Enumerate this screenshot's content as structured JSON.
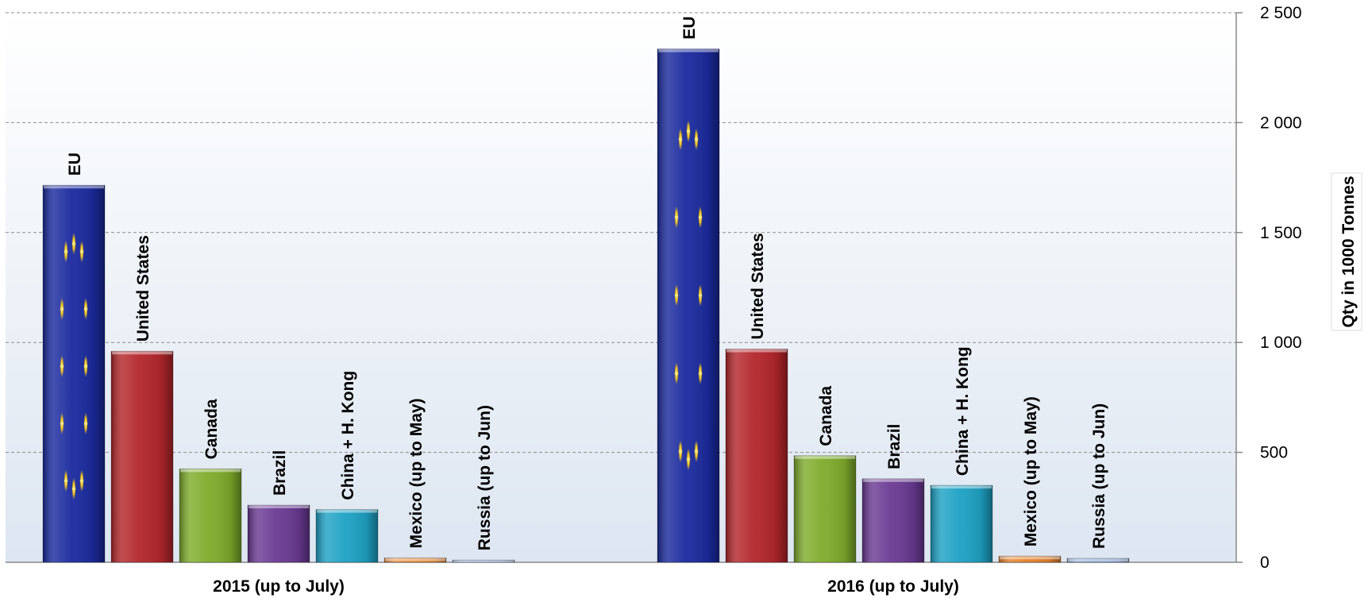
{
  "chart_data": {
    "type": "bar",
    "title": "",
    "xlabel": "",
    "ylabel": "Qty in 1000 Tonnes",
    "ylim": [
      0,
      2500
    ],
    "yticks": [
      0,
      500,
      1000,
      1500,
      2000,
      2500
    ],
    "ytick_labels": [
      "0",
      "500",
      "1 000",
      "1 500",
      "2 000",
      "2 500"
    ],
    "grid": true,
    "legend": "none",
    "groups": [
      "2015 (up to July)",
      "2016 (up to July)"
    ],
    "series": [
      {
        "name": "EU",
        "values": [
          1715,
          2335
        ],
        "color": "#1a2a9e",
        "pattern": "eu-stars"
      },
      {
        "name": "United States",
        "values": [
          960,
          970
        ],
        "color": "#b3262b"
      },
      {
        "name": "Canada",
        "values": [
          425,
          485
        ],
        "color": "#7fac2c"
      },
      {
        "name": "Brazil",
        "values": [
          260,
          380
        ],
        "color": "#6a3a93"
      },
      {
        "name": "China + H. Kong",
        "values": [
          240,
          350
        ],
        "color": "#1ea2c4"
      },
      {
        "name": "Mexico (up to May)",
        "values": [
          20,
          28
        ],
        "color": "#e5812a"
      },
      {
        "name": "Russia (up to Jun)",
        "values": [
          10,
          18
        ],
        "color": "#7f9fd0"
      }
    ]
  }
}
